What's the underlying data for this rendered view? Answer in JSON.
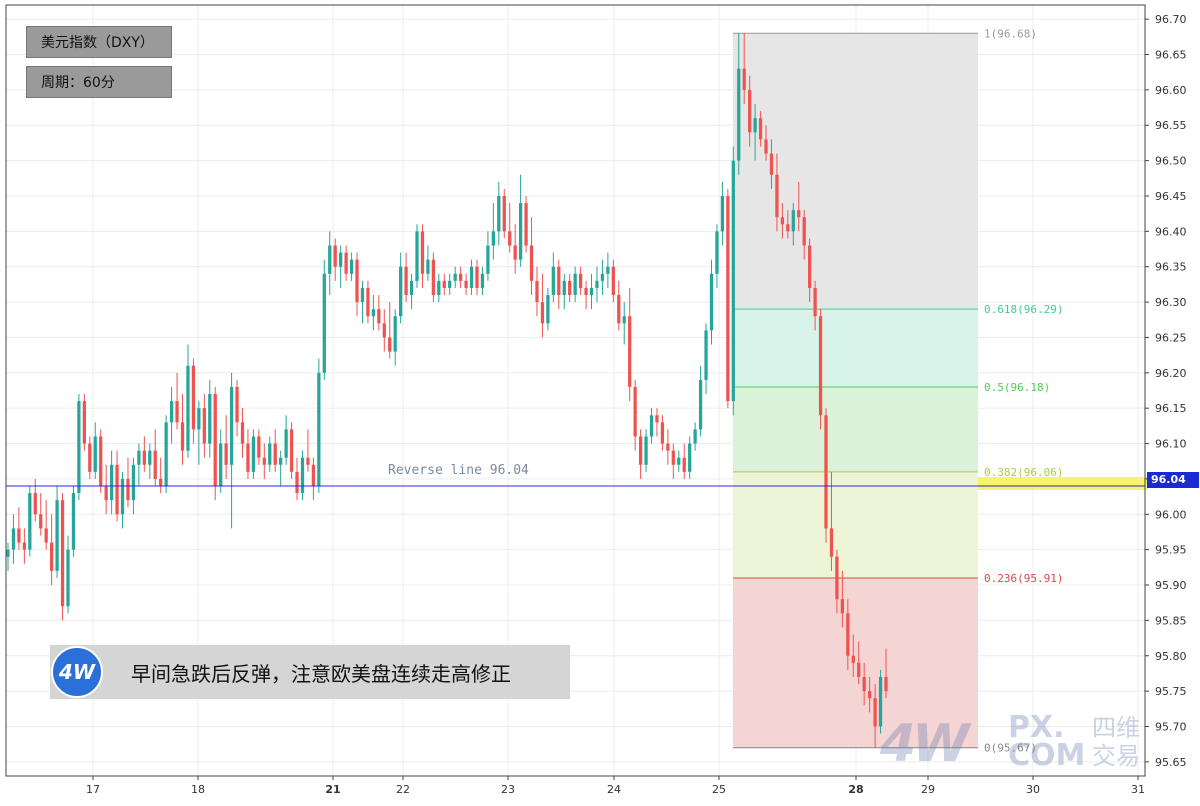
{
  "labels": {
    "instrument": "美元指数（DXY）",
    "period": "周期：60分",
    "banner": "早间急跌后反弹，注意欧美盘连续走高修正",
    "logo_text": "4W",
    "current_price": "96.04",
    "watermark_big": "4W",
    "watermark_mid": "PX.\nCOM",
    "watermark_cn": "四维\n交易"
  },
  "chart_data": {
    "type": "candlestick",
    "title": "",
    "y_ticks": [
      95.65,
      95.7,
      95.75,
      95.8,
      95.85,
      95.9,
      95.95,
      96.0,
      96.05,
      96.1,
      96.15,
      96.2,
      96.25,
      96.3,
      96.35,
      96.4,
      96.45,
      96.5,
      96.55,
      96.6,
      96.65,
      96.7
    ],
    "ylim": [
      95.63,
      96.72
    ],
    "x_ticks": [
      {
        "label": "17",
        "bold": false
      },
      {
        "label": "18",
        "bold": false
      },
      {
        "label": "21",
        "bold": true
      },
      {
        "label": "22",
        "bold": false
      },
      {
        "label": "23",
        "bold": false
      },
      {
        "label": "24",
        "bold": false
      },
      {
        "label": "25",
        "bold": false
      },
      {
        "label": "28",
        "bold": true
      },
      {
        "label": "29",
        "bold": false
      },
      {
        "label": "30",
        "bold": false
      },
      {
        "label": "31",
        "bold": false
      }
    ],
    "up_color": "#26a69a",
    "down_color": "#ef5350",
    "reverse_line": {
      "value": 96.04,
      "label": "Reverse line 96.04",
      "color": "#2a2ad0"
    },
    "fibonacci": [
      {
        "ratio": "1",
        "value": 96.68,
        "label": "1(96.68)",
        "color": "#999999",
        "fill": "#e6e6e6"
      },
      {
        "ratio": "0.618",
        "value": 96.29,
        "label": "0.618(96.29)",
        "color": "#3fcf8e",
        "fill": "#d7f3ea"
      },
      {
        "ratio": "0.5",
        "value": 96.18,
        "label": "0.5(96.18)",
        "color": "#4ccf4c",
        "fill": "#d9f2d9"
      },
      {
        "ratio": "0.382",
        "value": 96.06,
        "label": "0.382(96.06)",
        "color": "#a8cf3f",
        "fill": "#eef4d6"
      },
      {
        "ratio": "0.236",
        "value": 95.91,
        "label": "0.236(95.91)",
        "color": "#d94848",
        "fill": "#f5d4d4"
      },
      {
        "ratio": "0",
        "value": 95.67,
        "label": "0(95.67)",
        "color": "#888888",
        "fill": null
      }
    ],
    "candles": [
      [
        95.94,
        95.96,
        95.92,
        95.95
      ],
      [
        95.95,
        96.0,
        95.93,
        95.98
      ],
      [
        95.98,
        96.01,
        95.95,
        95.96
      ],
      [
        95.96,
        95.98,
        95.93,
        95.95
      ],
      [
        95.95,
        96.04,
        95.94,
        96.03
      ],
      [
        96.03,
        96.05,
        95.99,
        96.0
      ],
      [
        96.0,
        96.03,
        95.97,
        95.98
      ],
      [
        95.98,
        96.02,
        95.95,
        95.96
      ],
      [
        95.96,
        96.0,
        95.9,
        95.92
      ],
      [
        95.92,
        96.04,
        95.91,
        96.02
      ],
      [
        96.02,
        96.03,
        95.85,
        95.87
      ],
      [
        95.87,
        95.97,
        95.86,
        95.95
      ],
      [
        95.95,
        96.04,
        95.94,
        96.03
      ],
      [
        96.03,
        96.17,
        96.02,
        96.16
      ],
      [
        96.16,
        96.17,
        96.09,
        96.1
      ],
      [
        96.1,
        96.11,
        96.05,
        96.06
      ],
      [
        96.06,
        96.13,
        96.05,
        96.11
      ],
      [
        96.11,
        96.12,
        96.03,
        96.04
      ],
      [
        96.04,
        96.07,
        96.0,
        96.02
      ],
      [
        96.02,
        96.09,
        96.0,
        96.07
      ],
      [
        96.07,
        96.09,
        95.99,
        96.0
      ],
      [
        96.0,
        96.06,
        95.98,
        96.05
      ],
      [
        96.05,
        96.08,
        96.01,
        96.02
      ],
      [
        96.02,
        96.08,
        96.0,
        96.07
      ],
      [
        96.07,
        96.1,
        96.04,
        96.09
      ],
      [
        96.09,
        96.11,
        96.06,
        96.07
      ],
      [
        96.07,
        96.1,
        96.05,
        96.09
      ],
      [
        96.09,
        96.12,
        96.04,
        96.05
      ],
      [
        96.05,
        96.08,
        96.03,
        96.04
      ],
      [
        96.04,
        96.14,
        96.03,
        96.13
      ],
      [
        96.13,
        96.18,
        96.1,
        96.16
      ],
      [
        96.16,
        96.2,
        96.12,
        96.13
      ],
      [
        96.13,
        96.17,
        96.07,
        96.09
      ],
      [
        96.09,
        96.24,
        96.08,
        96.21
      ],
      [
        96.21,
        96.22,
        96.1,
        96.12
      ],
      [
        96.12,
        96.16,
        96.07,
        96.15
      ],
      [
        96.15,
        96.17,
        96.08,
        96.1
      ],
      [
        96.1,
        96.19,
        96.08,
        96.17
      ],
      [
        96.17,
        96.18,
        96.02,
        96.04
      ],
      [
        96.04,
        96.12,
        96.03,
        96.1
      ],
      [
        96.1,
        96.14,
        96.05,
        96.07
      ],
      [
        96.07,
        96.2,
        95.98,
        96.18
      ],
      [
        96.18,
        96.19,
        96.11,
        96.13
      ],
      [
        96.13,
        96.15,
        96.08,
        96.1
      ],
      [
        96.1,
        96.12,
        96.05,
        96.06
      ],
      [
        96.06,
        96.12,
        96.05,
        96.11
      ],
      [
        96.11,
        96.12,
        96.07,
        96.08
      ],
      [
        96.08,
        96.1,
        96.05,
        96.07
      ],
      [
        96.07,
        96.11,
        96.06,
        96.1
      ],
      [
        96.1,
        96.12,
        96.06,
        96.07
      ],
      [
        96.07,
        96.09,
        96.04,
        96.08
      ],
      [
        96.08,
        96.14,
        96.07,
        96.12
      ],
      [
        96.12,
        96.13,
        96.05,
        96.06
      ],
      [
        96.06,
        96.08,
        96.02,
        96.03
      ],
      [
        96.03,
        96.09,
        96.02,
        96.08
      ],
      [
        96.08,
        96.12,
        96.06,
        96.07
      ],
      [
        96.07,
        96.08,
        96.02,
        96.04
      ],
      [
        96.04,
        96.22,
        96.03,
        96.2
      ],
      [
        96.2,
        96.36,
        96.19,
        96.34
      ],
      [
        96.34,
        96.4,
        96.31,
        96.38
      ],
      [
        96.38,
        96.39,
        96.33,
        96.35
      ],
      [
        96.35,
        96.38,
        96.32,
        96.37
      ],
      [
        96.37,
        96.38,
        96.33,
        96.34
      ],
      [
        96.34,
        96.37,
        96.33,
        96.36
      ],
      [
        96.36,
        96.37,
        96.28,
        96.3
      ],
      [
        96.3,
        96.33,
        96.27,
        96.32
      ],
      [
        96.32,
        96.33,
        96.27,
        96.28
      ],
      [
        96.28,
        96.31,
        96.26,
        96.29
      ],
      [
        96.29,
        96.31,
        96.26,
        96.27
      ],
      [
        96.27,
        96.29,
        96.23,
        96.25
      ],
      [
        96.25,
        96.3,
        96.22,
        96.23
      ],
      [
        96.23,
        96.29,
        96.21,
        96.28
      ],
      [
        96.28,
        96.37,
        96.27,
        96.35
      ],
      [
        96.35,
        96.37,
        96.3,
        96.31
      ],
      [
        96.31,
        96.34,
        96.29,
        96.33
      ],
      [
        96.33,
        96.41,
        96.32,
        96.4
      ],
      [
        96.4,
        96.41,
        96.32,
        96.34
      ],
      [
        96.34,
        96.38,
        96.33,
        96.36
      ],
      [
        96.36,
        96.37,
        96.3,
        96.31
      ],
      [
        96.31,
        96.34,
        96.3,
        96.33
      ],
      [
        96.33,
        96.34,
        96.31,
        96.32
      ],
      [
        96.32,
        96.34,
        96.31,
        96.33
      ],
      [
        96.33,
        96.35,
        96.32,
        96.34
      ],
      [
        96.34,
        96.35,
        96.32,
        96.33
      ],
      [
        96.33,
        96.34,
        96.31,
        96.32
      ],
      [
        96.32,
        96.36,
        96.31,
        96.35
      ],
      [
        96.35,
        96.36,
        96.31,
        96.32
      ],
      [
        96.32,
        96.35,
        96.31,
        96.34
      ],
      [
        96.34,
        96.4,
        96.33,
        96.38
      ],
      [
        96.38,
        96.44,
        96.36,
        96.4
      ],
      [
        96.4,
        96.47,
        96.38,
        96.45
      ],
      [
        96.45,
        96.46,
        96.39,
        96.4
      ],
      [
        96.4,
        96.44,
        96.37,
        96.38
      ],
      [
        96.38,
        96.41,
        96.34,
        96.36
      ],
      [
        96.36,
        96.48,
        96.35,
        96.44
      ],
      [
        96.44,
        96.45,
        96.37,
        96.38
      ],
      [
        96.38,
        96.42,
        96.31,
        96.33
      ],
      [
        96.33,
        96.35,
        96.28,
        96.3
      ],
      [
        96.3,
        96.34,
        96.25,
        96.27
      ],
      [
        96.27,
        96.32,
        96.26,
        96.31
      ],
      [
        96.31,
        96.37,
        96.3,
        96.35
      ],
      [
        96.35,
        96.36,
        96.29,
        96.31
      ],
      [
        96.31,
        96.34,
        96.29,
        96.33
      ],
      [
        96.33,
        96.34,
        96.3,
        96.31
      ],
      [
        96.31,
        96.35,
        96.3,
        96.34
      ],
      [
        96.34,
        96.35,
        96.31,
        96.32
      ],
      [
        96.32,
        96.33,
        96.29,
        96.31
      ],
      [
        96.31,
        96.34,
        96.29,
        96.32
      ],
      [
        96.32,
        96.35,
        96.3,
        96.33
      ],
      [
        96.33,
        96.36,
        96.31,
        96.34
      ],
      [
        96.34,
        96.37,
        96.32,
        96.35
      ],
      [
        96.35,
        96.36,
        96.3,
        96.31
      ],
      [
        96.31,
        96.33,
        96.26,
        96.27
      ],
      [
        96.27,
        96.3,
        96.24,
        96.28
      ],
      [
        96.28,
        96.32,
        96.16,
        96.18
      ],
      [
        96.18,
        96.19,
        96.09,
        96.11
      ],
      [
        96.11,
        96.12,
        96.05,
        96.07
      ],
      [
        96.07,
        96.12,
        96.06,
        96.11
      ],
      [
        96.11,
        96.15,
        96.1,
        96.14
      ],
      [
        96.14,
        96.15,
        96.11,
        96.13
      ],
      [
        96.13,
        96.14,
        96.09,
        96.1
      ],
      [
        96.1,
        96.12,
        96.07,
        96.09
      ],
      [
        96.09,
        96.1,
        96.05,
        96.07
      ],
      [
        96.07,
        96.09,
        96.06,
        96.08
      ],
      [
        96.08,
        96.1,
        96.05,
        96.06
      ],
      [
        96.06,
        96.11,
        96.05,
        96.1
      ],
      [
        96.1,
        96.13,
        96.09,
        96.12
      ],
      [
        96.12,
        96.21,
        96.11,
        96.19
      ],
      [
        96.19,
        96.27,
        96.17,
        96.26
      ],
      [
        96.26,
        96.36,
        96.24,
        96.34
      ],
      [
        96.34,
        96.41,
        96.32,
        96.4
      ],
      [
        96.4,
        96.47,
        96.38,
        96.45
      ],
      [
        96.45,
        96.46,
        96.15,
        96.16
      ],
      [
        96.16,
        96.52,
        96.14,
        96.5
      ],
      [
        96.5,
        96.68,
        96.48,
        96.63
      ],
      [
        96.63,
        96.68,
        96.58,
        96.6
      ],
      [
        96.6,
        96.62,
        96.52,
        96.54
      ],
      [
        96.54,
        96.58,
        96.5,
        96.56
      ],
      [
        96.56,
        96.57,
        96.52,
        96.53
      ],
      [
        96.53,
        96.55,
        96.5,
        96.51
      ],
      [
        96.51,
        96.53,
        96.46,
        96.48
      ],
      [
        96.48,
        96.51,
        96.4,
        96.42
      ],
      [
        96.42,
        96.44,
        96.39,
        96.41
      ],
      [
        96.41,
        96.43,
        96.39,
        96.4
      ],
      [
        96.4,
        96.44,
        96.38,
        96.43
      ],
      [
        96.43,
        96.47,
        96.4,
        96.42
      ],
      [
        96.42,
        96.43,
        96.36,
        96.38
      ],
      [
        96.38,
        96.39,
        96.3,
        96.32
      ],
      [
        96.32,
        96.33,
        96.26,
        96.28
      ],
      [
        96.28,
        96.29,
        96.12,
        96.14
      ],
      [
        96.14,
        96.15,
        95.96,
        95.98
      ],
      [
        95.98,
        96.06,
        95.92,
        95.94
      ],
      [
        95.94,
        95.95,
        95.86,
        95.88
      ],
      [
        95.88,
        95.92,
        95.84,
        95.86
      ],
      [
        95.86,
        95.88,
        95.78,
        95.8
      ],
      [
        95.8,
        95.83,
        95.77,
        95.79
      ],
      [
        95.79,
        95.82,
        95.76,
        95.77
      ],
      [
        95.77,
        95.79,
        95.73,
        95.75
      ],
      [
        95.75,
        95.77,
        95.72,
        95.74
      ],
      [
        95.74,
        95.76,
        95.67,
        95.7
      ],
      [
        95.7,
        95.78,
        95.69,
        95.77
      ],
      [
        95.77,
        95.81,
        95.74,
        95.75
      ]
    ]
  }
}
